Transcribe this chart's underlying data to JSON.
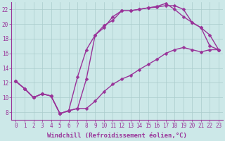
{
  "xlabel": "Windchill (Refroidissement éolien,°C)",
  "bg_color": "#cce8e8",
  "line_color": "#993399",
  "grid_color": "#aacccc",
  "xlim_min": -0.5,
  "xlim_max": 23.5,
  "ylim_min": 7,
  "ylim_max": 23,
  "xticks": [
    0,
    1,
    2,
    3,
    4,
    5,
    6,
    7,
    8,
    9,
    10,
    11,
    12,
    13,
    14,
    15,
    16,
    17,
    18,
    19,
    20,
    21,
    22,
    23
  ],
  "yticks": [
    8,
    10,
    12,
    14,
    16,
    18,
    20,
    22
  ],
  "line1_x": [
    0,
    1,
    2,
    3,
    4,
    5,
    6,
    7,
    8,
    9,
    10,
    11,
    12,
    13,
    14,
    15,
    16,
    17,
    18,
    19,
    20,
    21,
    22,
    23
  ],
  "line1_y": [
    12.2,
    11.2,
    10.0,
    10.5,
    10.2,
    7.8,
    8.2,
    8.5,
    8.5,
    9.5,
    10.8,
    11.8,
    12.5,
    13.0,
    13.8,
    14.5,
    15.2,
    16.0,
    16.5,
    16.8,
    16.5,
    16.2,
    16.5,
    16.5
  ],
  "line2_x": [
    0,
    1,
    2,
    3,
    4,
    5,
    6,
    7,
    8,
    9,
    10,
    11,
    12,
    13,
    14,
    15,
    16,
    17,
    18,
    19,
    20,
    21,
    22,
    23
  ],
  "line2_y": [
    12.2,
    11.2,
    10.0,
    10.5,
    10.2,
    7.8,
    8.2,
    12.8,
    16.5,
    18.5,
    19.8,
    20.5,
    21.8,
    21.8,
    22.0,
    22.2,
    22.3,
    22.5,
    22.5,
    22.0,
    20.2,
    19.5,
    18.5,
    16.5
  ],
  "line3_x": [
    0,
    1,
    2,
    3,
    4,
    5,
    6,
    7,
    8,
    9,
    10,
    11,
    12,
    13,
    14,
    15,
    16,
    17,
    18,
    19,
    20,
    21,
    22,
    23
  ],
  "line3_y": [
    12.2,
    11.2,
    10.0,
    10.5,
    10.2,
    7.8,
    8.2,
    8.5,
    12.5,
    18.5,
    19.5,
    21.0,
    21.8,
    21.8,
    22.0,
    22.2,
    22.4,
    22.8,
    22.0,
    21.0,
    20.2,
    19.5,
    17.0,
    16.5
  ],
  "marker": "D",
  "markersize": 2.5,
  "linewidth": 1.0,
  "tick_fontsize": 5.5,
  "xlabel_fontsize": 6.5
}
